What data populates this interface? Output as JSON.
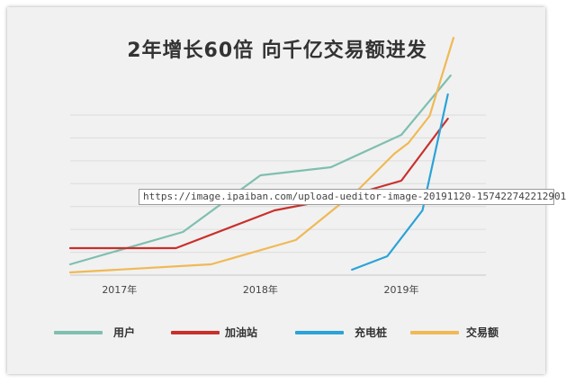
{
  "chart_data": {
    "type": "line",
    "title": "2年增长60倍 向千亿交易额进发",
    "x_ticks": [
      "2017年",
      "2018年",
      "2019年"
    ],
    "ylim": [
      0,
      7
    ],
    "grid": true,
    "legend_position": "bottom",
    "series": [
      {
        "name": "用户",
        "color": "#7fbfb0",
        "points": [
          [
            2016.65,
            0.4
          ],
          [
            2017.45,
            1.6
          ],
          [
            2018.0,
            3.7
          ],
          [
            2018.5,
            4.0
          ],
          [
            2019.0,
            5.2
          ],
          [
            2019.35,
            7.4
          ]
        ]
      },
      {
        "name": "加油站",
        "color": "#c9302c",
        "points": [
          [
            2016.65,
            1.0
          ],
          [
            2017.4,
            1.0
          ],
          [
            2018.1,
            2.4
          ],
          [
            2018.6,
            2.9
          ],
          [
            2019.0,
            3.5
          ],
          [
            2019.33,
            5.8
          ]
        ]
      },
      {
        "name": "充电桩",
        "color": "#2aa3d8",
        "points": [
          [
            2018.65,
            0.2
          ],
          [
            2018.9,
            0.7
          ],
          [
            2019.15,
            2.4
          ],
          [
            2019.33,
            6.7
          ]
        ]
      },
      {
        "name": "交易额",
        "color": "#f0b955",
        "points": [
          [
            2016.65,
            0.1
          ],
          [
            2017.65,
            0.4
          ],
          [
            2018.25,
            1.3
          ],
          [
            2018.7,
            3.2
          ],
          [
            2018.95,
            4.5
          ],
          [
            2019.05,
            4.9
          ],
          [
            2019.2,
            5.9
          ],
          [
            2019.37,
            8.8
          ]
        ]
      }
    ]
  },
  "watermark_text": "https://image.ipaiban.com/upload-ueditor-image-20191120-157422742212901"
}
